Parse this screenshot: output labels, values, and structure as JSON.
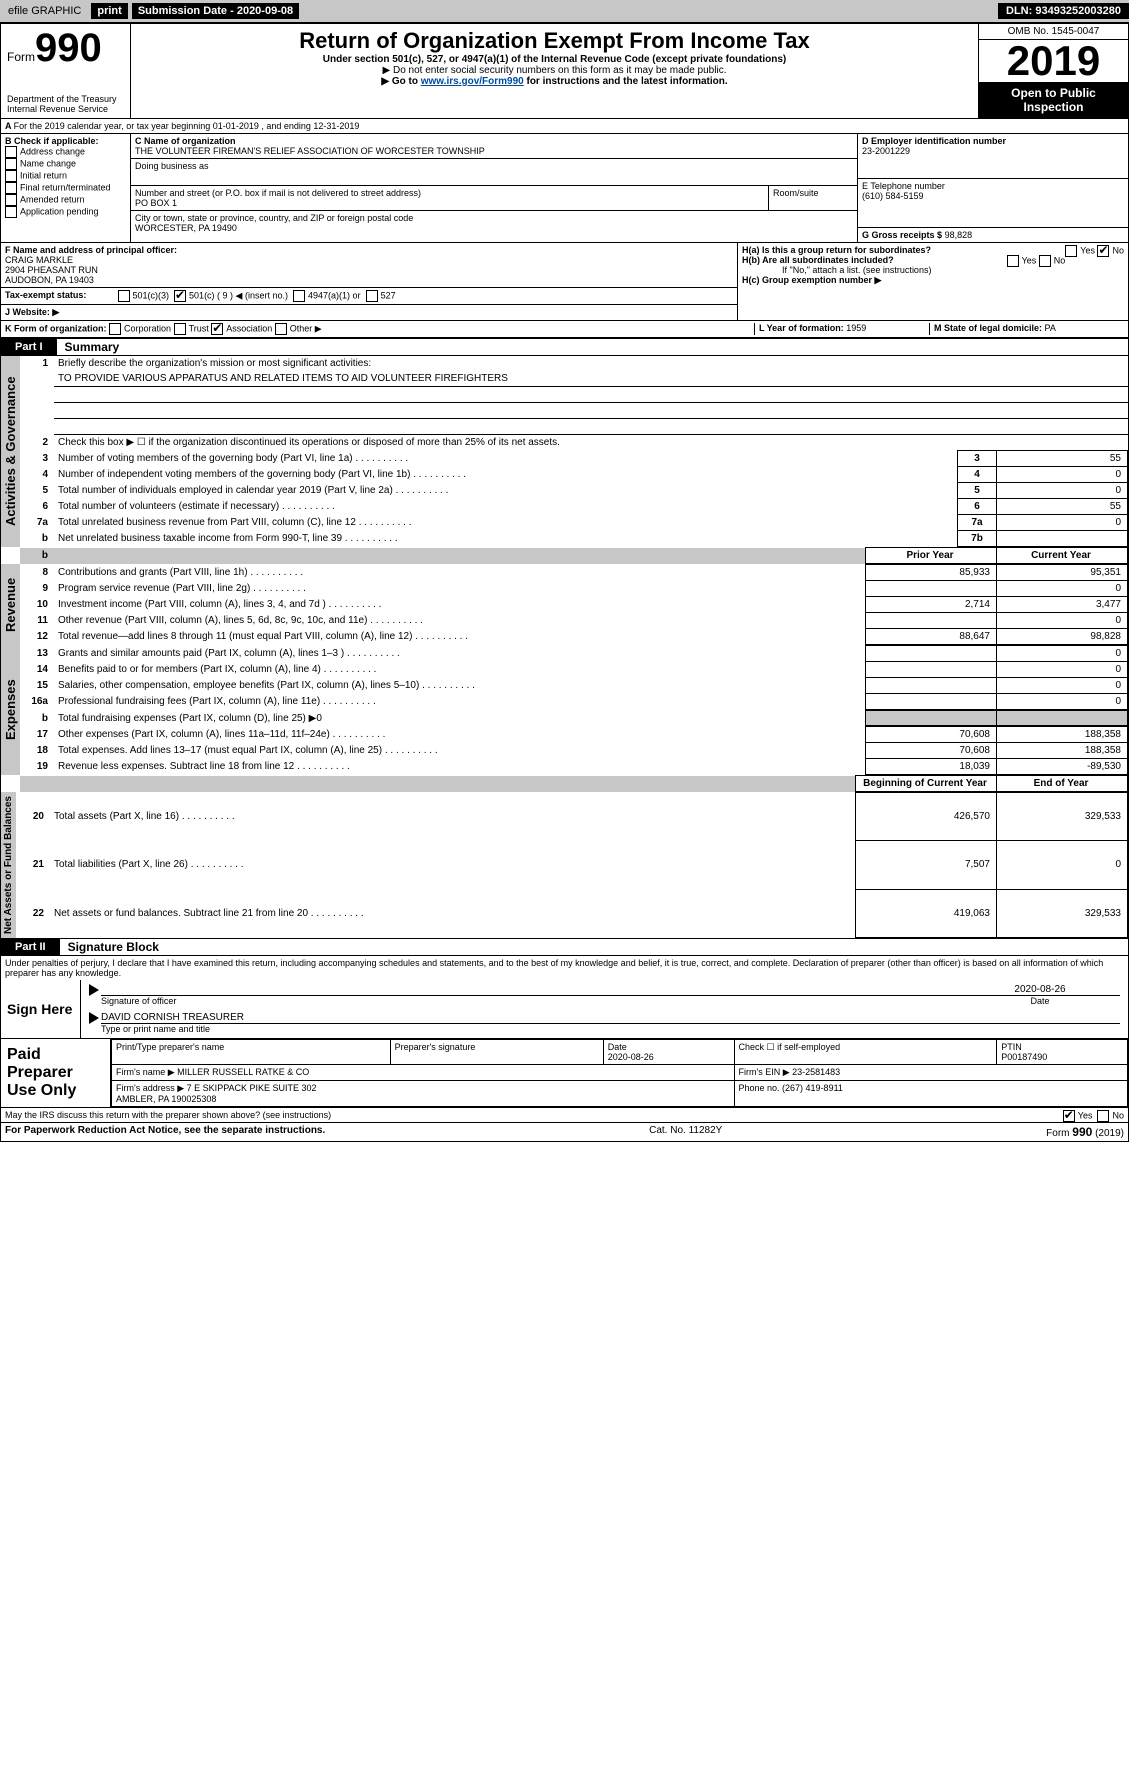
{
  "topbar": {
    "efile": "efile GRAPHIC",
    "print": "print",
    "subdate_label": "Submission Date - 2020-09-08",
    "dln": "DLN: 93493252003280"
  },
  "header": {
    "form_word": "Form",
    "form_num": "990",
    "dept": "Department of the Treasury Internal Revenue Service",
    "title": "Return of Organization Exempt From Income Tax",
    "sub": "Under section 501(c), 527, or 4947(a)(1) of the Internal Revenue Code (except private foundations)",
    "note1": "▶ Do not enter social security numbers on this form as it may be made public.",
    "note2_pre": "▶ Go to ",
    "note2_link": "www.irs.gov/Form990",
    "note2_post": " for instructions and the latest information.",
    "omb": "OMB No. 1545-0047",
    "year": "2019",
    "inspect": "Open to Public Inspection"
  },
  "lineA": "For the 2019 calendar year, or tax year beginning 01-01-2019    , and ending 12-31-2019",
  "boxB": {
    "label": "B Check if applicable:",
    "items": [
      "Address change",
      "Name change",
      "Initial return",
      "Final return/terminated",
      "Amended return",
      "Application pending"
    ]
  },
  "boxC": {
    "label": "C Name of organization",
    "name": "THE VOLUNTEER FIREMAN'S RELIEF ASSOCIATION OF WORCESTER TOWNSHIP",
    "dba_label": "Doing business as",
    "addr_label": "Number and street (or P.O. box if mail is not delivered to street address)",
    "addr": "PO BOX 1",
    "room_label": "Room/suite",
    "city_label": "City or town, state or province, country, and ZIP or foreign postal code",
    "city": "WORCESTER, PA  19490"
  },
  "boxD": {
    "label": "D Employer identification number",
    "val": "23-2001229"
  },
  "boxE": {
    "label": "E Telephone number",
    "val": "(610) 584-5159"
  },
  "boxG": {
    "label": "G Gross receipts $",
    "val": "98,828"
  },
  "boxF": {
    "label": "F  Name and address of principal officer:",
    "name": "CRAIG MARKLE",
    "addr1": "2904 PHEASANT RUN",
    "addr2": "AUDOBON, PA  19403"
  },
  "boxH": {
    "a": "H(a)  Is this a group return for subordinates?",
    "b": "H(b)  Are all subordinates included?",
    "bnote": "If \"No,\" attach a list. (see instructions)",
    "c": "H(c)  Group exemption number ▶",
    "yes": "Yes",
    "no": "No"
  },
  "boxI": {
    "label": "Tax-exempt status:",
    "opts": [
      "501(c)(3)",
      "501(c) ( 9 ) ◀ (insert no.)",
      "4947(a)(1) or",
      "527"
    ]
  },
  "boxJ": {
    "label": "J   Website: ▶"
  },
  "boxK": {
    "label": "K Form of organization:",
    "opts": [
      "Corporation",
      "Trust",
      "Association",
      "Other ▶"
    ]
  },
  "boxL": {
    "label": "L Year of formation:",
    "val": "1959"
  },
  "boxM": {
    "label": "M State of legal domicile:",
    "val": "PA"
  },
  "part1": {
    "num": "Part I",
    "title": "Summary"
  },
  "governance": {
    "label": "Activities & Governance",
    "l1": "Briefly describe the organization's mission or most significant activities:",
    "l1val": "TO PROVIDE VARIOUS APPARATUS AND RELATED ITEMS TO AID VOLUNTEER FIREFIGHTERS",
    "l2": "Check this box ▶ ☐ if the organization discontinued its operations or disposed of more than 25% of its net assets.",
    "rows": [
      {
        "n": "3",
        "d": "Number of voting members of the governing body (Part VI, line 1a)",
        "b": "3",
        "v": "55"
      },
      {
        "n": "4",
        "d": "Number of independent voting members of the governing body (Part VI, line 1b)",
        "b": "4",
        "v": "0"
      },
      {
        "n": "5",
        "d": "Total number of individuals employed in calendar year 2019 (Part V, line 2a)",
        "b": "5",
        "v": "0"
      },
      {
        "n": "6",
        "d": "Total number of volunteers (estimate if necessary)",
        "b": "6",
        "v": "55"
      },
      {
        "n": "7a",
        "d": "Total unrelated business revenue from Part VIII, column (C), line 12",
        "b": "7a",
        "v": "0"
      },
      {
        "n": "b",
        "d": "Net unrelated business taxable income from Form 990-T, line 39",
        "b": "7b",
        "v": ""
      }
    ]
  },
  "colhead": {
    "prior": "Prior Year",
    "current": "Current Year"
  },
  "revenue": {
    "label": "Revenue",
    "rows": [
      {
        "n": "8",
        "d": "Contributions and grants (Part VIII, line 1h)",
        "p": "85,933",
        "c": "95,351"
      },
      {
        "n": "9",
        "d": "Program service revenue (Part VIII, line 2g)",
        "p": "",
        "c": "0"
      },
      {
        "n": "10",
        "d": "Investment income (Part VIII, column (A), lines 3, 4, and 7d )",
        "p": "2,714",
        "c": "3,477"
      },
      {
        "n": "11",
        "d": "Other revenue (Part VIII, column (A), lines 5, 6d, 8c, 9c, 10c, and 11e)",
        "p": "",
        "c": "0"
      },
      {
        "n": "12",
        "d": "Total revenue—add lines 8 through 11 (must equal Part VIII, column (A), line 12)",
        "p": "88,647",
        "c": "98,828"
      }
    ]
  },
  "expenses": {
    "label": "Expenses",
    "rows": [
      {
        "n": "13",
        "d": "Grants and similar amounts paid (Part IX, column (A), lines 1–3 )",
        "p": "",
        "c": "0"
      },
      {
        "n": "14",
        "d": "Benefits paid to or for members (Part IX, column (A), line 4)",
        "p": "",
        "c": "0"
      },
      {
        "n": "15",
        "d": "Salaries, other compensation, employee benefits (Part IX, column (A), lines 5–10)",
        "p": "",
        "c": "0"
      },
      {
        "n": "16a",
        "d": "Professional fundraising fees (Part IX, column (A), line 11e)",
        "p": "",
        "c": "0"
      }
    ],
    "l16b": "Total fundraising expenses (Part IX, column (D), line 25) ▶0",
    "rows2": [
      {
        "n": "17",
        "d": "Other expenses (Part IX, column (A), lines 11a–11d, 11f–24e)",
        "p": "70,608",
        "c": "188,358"
      },
      {
        "n": "18",
        "d": "Total expenses. Add lines 13–17 (must equal Part IX, column (A), line 25)",
        "p": "70,608",
        "c": "188,358"
      },
      {
        "n": "19",
        "d": "Revenue less expenses. Subtract line 18 from line 12",
        "p": "18,039",
        "c": "-89,530"
      }
    ]
  },
  "colhead2": {
    "prior": "Beginning of Current Year",
    "current": "End of Year"
  },
  "netassets": {
    "label": "Net Assets or Fund Balances",
    "rows": [
      {
        "n": "20",
        "d": "Total assets (Part X, line 16)",
        "p": "426,570",
        "c": "329,533"
      },
      {
        "n": "21",
        "d": "Total liabilities (Part X, line 26)",
        "p": "7,507",
        "c": "0"
      },
      {
        "n": "22",
        "d": "Net assets or fund balances. Subtract line 21 from line 20",
        "p": "419,063",
        "c": "329,533"
      }
    ]
  },
  "part2": {
    "num": "Part II",
    "title": "Signature Block"
  },
  "perjury": "Under penalties of perjury, I declare that I have examined this return, including accompanying schedules and statements, and to the best of my knowledge and belief, it is true, correct, and complete. Declaration of preparer (other than officer) is based on all information of which preparer has any knowledge.",
  "sign": {
    "here": "Sign Here",
    "sig_label": "Signature of officer",
    "date": "2020-08-26",
    "date_label": "Date",
    "name": "DAVID CORNISH TREASURER",
    "name_label": "Type or print name and title"
  },
  "paid": {
    "label": "Paid Preparer Use Only",
    "r1": [
      "Print/Type preparer's name",
      "Preparer's signature",
      "Date\n2020-08-26",
      "Check ☐ if self-employed",
      "PTIN\nP00187490"
    ],
    "r2l": "Firm's name     ▶",
    "r2v": "MILLER RUSSELL RATKE & CO",
    "r2e": "Firm's EIN ▶ 23-2581483",
    "r3l": "Firm's address ▶",
    "r3v": "7 E SKIPPACK PIKE SUITE 302\nAMBLER, PA  190025308",
    "r3e": "Phone no. (267) 419-8911"
  },
  "discuss": "May the IRS discuss this return with the preparer shown above? (see instructions)",
  "footer": {
    "l": "For Paperwork Reduction Act Notice, see the separate instructions.",
    "m": "Cat. No. 11282Y",
    "r": "Form 990 (2019)"
  },
  "colors": {
    "grey": "#c7c7c7",
    "link": "#004b9b"
  }
}
